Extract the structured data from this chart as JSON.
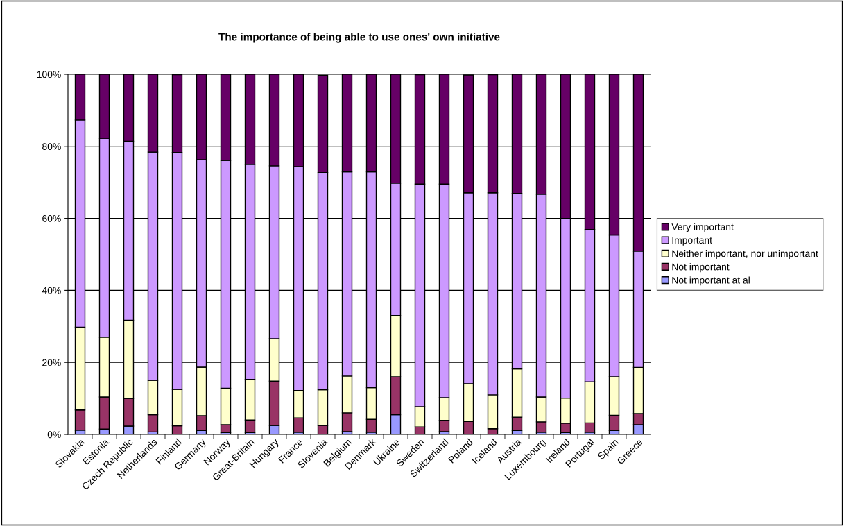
{
  "chart_data": {
    "type": "bar",
    "title": "The importance of being able to use ones' own initiative",
    "stacked": true,
    "categories": [
      "Slovakia",
      "Estonia",
      "Czech Republic",
      "Netherlands",
      "Finland",
      "Germany",
      "Norway",
      "Great-Britain",
      "Hungary",
      "France",
      "Slovenia",
      "Belgium",
      "Denmark",
      "Ukraine",
      "Sweden",
      "Switzerland",
      "Poland",
      "Iceland",
      "Austria",
      "Luxembourg",
      "Ireland",
      "Portugal",
      "Spain",
      "Greece"
    ],
    "series": [
      {
        "name": "Not important at al",
        "color": "#9999ff",
        "values": [
          1.2,
          1.5,
          2.3,
          0.7,
          null,
          1.1,
          0.5,
          0.5,
          2.5,
          0.6,
          null,
          0.8,
          0.6,
          5.5,
          null,
          0.8,
          null,
          null,
          1.1,
          0.6,
          0.5,
          0.6,
          1.1,
          2.7
        ]
      },
      {
        "name": "Not important",
        "color": "#993366",
        "values": [
          5.6,
          8.9,
          7.7,
          4.8,
          2.4,
          4.1,
          2.2,
          3.5,
          12.3,
          4.0,
          2.5,
          5.2,
          3.6,
          10.5,
          2.1,
          3.1,
          3.6,
          1.6,
          3.7,
          2.9,
          2.6,
          2.6,
          4.2,
          3.1
        ]
      },
      {
        "name": "Neither important, nor unimportant",
        "color": "#ffffcc",
        "values": [
          23.0,
          16.6,
          21.7,
          9.5,
          10.1,
          13.5,
          10.1,
          11.3,
          11.8,
          7.6,
          9.9,
          10.2,
          8.8,
          17.0,
          5.6,
          6.3,
          10.5,
          9.4,
          13.4,
          6.9,
          7.0,
          11.4,
          10.7,
          12.8
        ]
      },
      {
        "name": "Important",
        "color": "#cc99ff",
        "values": [
          57.5,
          55.1,
          49.7,
          63.4,
          65.8,
          57.6,
          63.3,
          59.7,
          48.0,
          62.2,
          60.3,
          56.7,
          59.9,
          36.8,
          61.8,
          59.3,
          53.0,
          56.1,
          48.7,
          56.3,
          49.9,
          42.3,
          39.4,
          32.3
        ]
      },
      {
        "name": "Very important",
        "color": "#660066",
        "values": [
          12.7,
          17.9,
          18.6,
          21.6,
          21.6,
          23.7,
          23.9,
          25.0,
          25.4,
          25.6,
          27.0,
          27.1,
          27.1,
          30.2,
          30.4,
          30.5,
          32.7,
          32.8,
          33.1,
          33.3,
          40.0,
          43.1,
          44.6,
          49.1
        ]
      }
    ],
    "ylim": [
      0,
      100
    ],
    "yticks": [
      {
        "value": 0,
        "label": "0%"
      },
      {
        "value": 20,
        "label": "20%"
      },
      {
        "value": 40,
        "label": "40%"
      },
      {
        "value": 60,
        "label": "60%"
      },
      {
        "value": 80,
        "label": "80%"
      },
      {
        "value": 100,
        "label": "100%"
      }
    ],
    "grid": "y",
    "legend": "right"
  }
}
